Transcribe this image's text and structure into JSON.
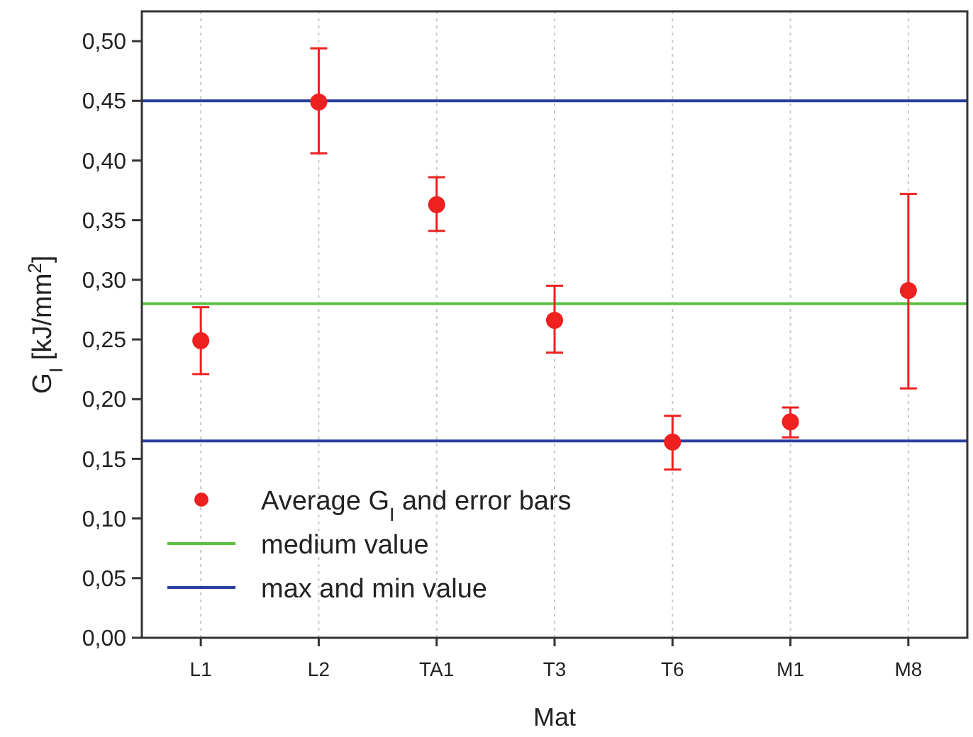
{
  "chart_data": {
    "type": "scatter",
    "xlabel": "Mat",
    "ylabel": "G$_{I}$ [kJ/mm$^{2}$]",
    "categories": [
      "L1",
      "L2",
      "TA1",
      "T3",
      "T6",
      "M1",
      "M8"
    ],
    "series": [
      {
        "name": "Average G$_{I}$ and error bars",
        "color": "#ee2020",
        "values": [
          0.249,
          0.449,
          0.363,
          0.266,
          0.164,
          0.181,
          0.291
        ],
        "errors": [
          [
            0.221,
            0.277
          ],
          [
            0.406,
            0.494
          ],
          [
            0.341,
            0.386
          ],
          [
            0.239,
            0.295
          ],
          [
            0.141,
            0.186
          ],
          [
            0.168,
            0.193
          ],
          [
            0.209,
            0.372
          ]
        ]
      }
    ],
    "ref_lines": [
      {
        "axis": "y",
        "value": 0.28,
        "label": "medium value",
        "color": "#5cc040"
      },
      {
        "axis": "y",
        "value": 0.45,
        "label": "max and min value",
        "color": "#2b3f9e"
      },
      {
        "axis": "y",
        "value": 0.165,
        "color": "#2b3f9e"
      }
    ],
    "ylim": [
      0,
      0.525
    ],
    "yticks": [
      {
        "value": 0,
        "label": "0,00"
      },
      {
        "value": 0.05,
        "label": "0,05"
      },
      {
        "value": 0.1,
        "label": "0,10"
      },
      {
        "value": 0.15,
        "label": "0,15"
      },
      {
        "value": 0.2,
        "label": "0,20"
      },
      {
        "value": 0.25,
        "label": "0,25"
      },
      {
        "value": 0.3,
        "label": "0,30"
      },
      {
        "value": 0.35,
        "label": "0,35"
      },
      {
        "value": 0.4,
        "label": "0,40"
      },
      {
        "value": 0.45,
        "label": "0,45"
      },
      {
        "value": 0.5,
        "label": "0,50"
      }
    ],
    "grid": "x",
    "legend": "bottom left",
    "marker": "circle"
  }
}
